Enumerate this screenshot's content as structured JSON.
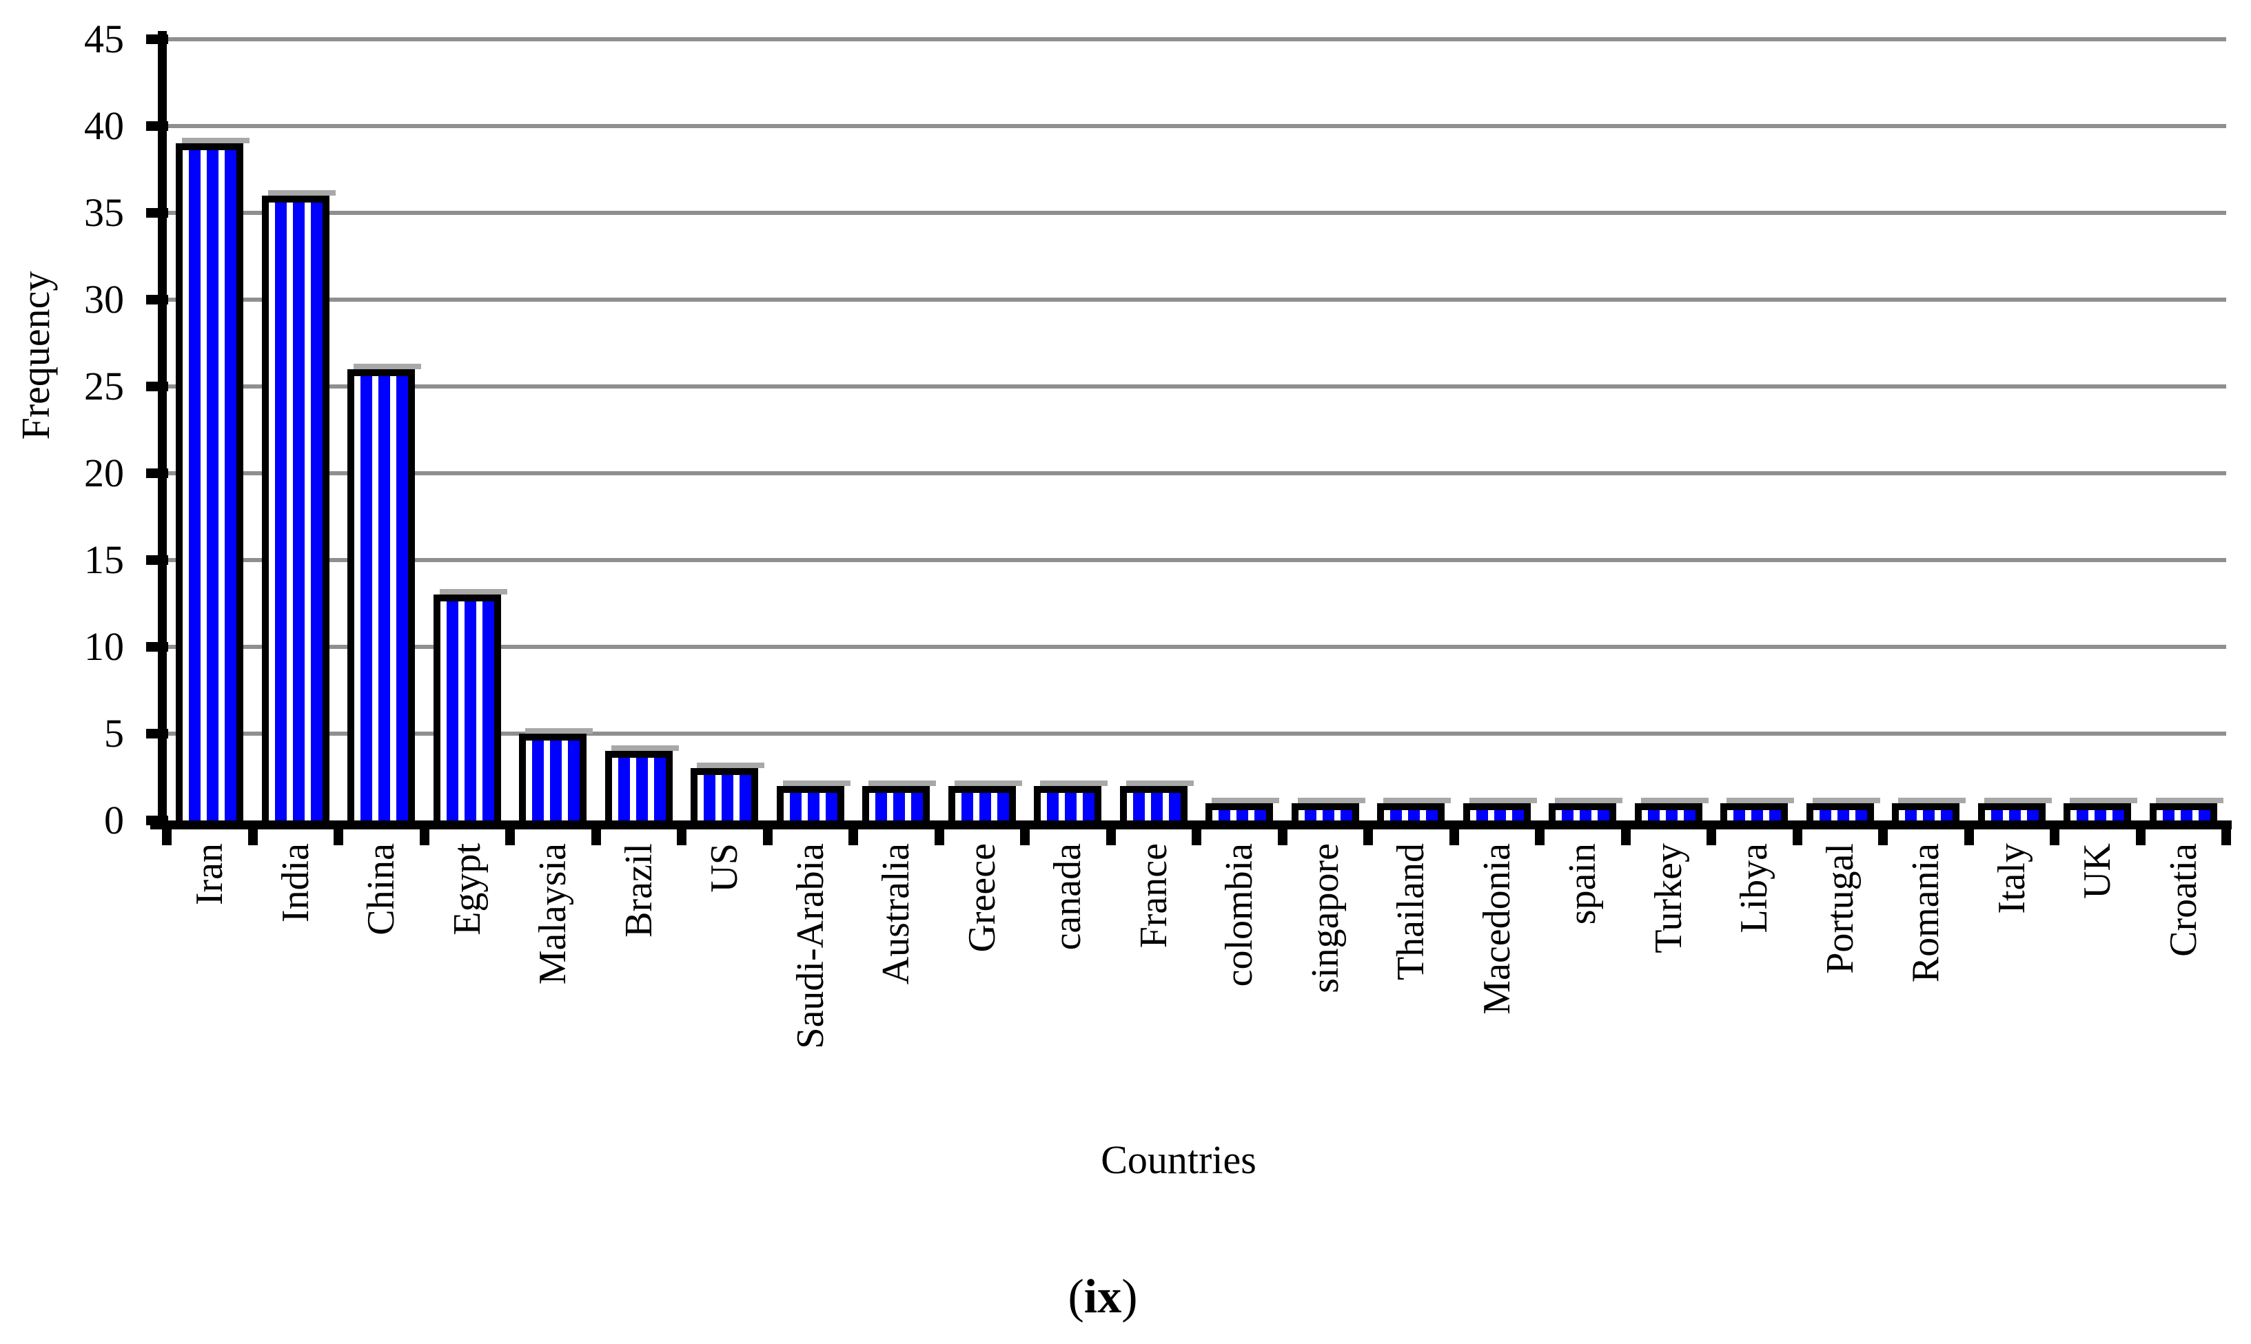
{
  "chart_data": {
    "type": "bar",
    "title": "",
    "xlabel": "Countries",
    "ylabel": "Frequency",
    "categories": [
      "Iran",
      "India",
      "China",
      "Egypt",
      "Malaysia",
      "Brazil",
      "US",
      "Saudi-Arabia",
      "Australia",
      "Greece",
      "canada",
      "France",
      "colombia",
      "singapore",
      "Thailand",
      "Macedonia",
      "spain",
      "Turkey",
      "Libya",
      "Portugal",
      "Romania",
      "Italy",
      "UK",
      "Croatia"
    ],
    "values": [
      39,
      36,
      26,
      13,
      5,
      4,
      3,
      2,
      2,
      2,
      2,
      2,
      1,
      1,
      1,
      1,
      1,
      1,
      1,
      1,
      1,
      1,
      1,
      1
    ],
    "ylim": [
      0,
      45
    ],
    "yticks": [
      0,
      5,
      10,
      15,
      20,
      25,
      30,
      35,
      40,
      45
    ],
    "grid": "horizontal",
    "legend": "none",
    "bar_style": "blue-white vertical stripes, black border, gray top shadow",
    "colors": {
      "bar_blue": "#0000ff",
      "stripe_white": "#ffffff",
      "bar_border": "#000000",
      "gridline": "#8f8f8f",
      "shadow": "#a8a8a8",
      "text": "#000000",
      "background": "#ffffff"
    }
  },
  "caption": {
    "prefix": "(",
    "text": "ix",
    "suffix": ")"
  }
}
